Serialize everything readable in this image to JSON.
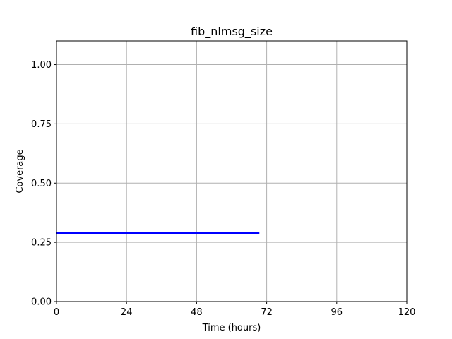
{
  "chart_data": {
    "type": "line",
    "title": "fib_nlmsg_size",
    "xlabel": "Time (hours)",
    "ylabel": "Coverage",
    "xlim": [
      0,
      120
    ],
    "ylim": [
      0,
      1.1
    ],
    "xticks": [
      0,
      24,
      48,
      72,
      96,
      120
    ],
    "xtick_labels": [
      "0",
      "24",
      "48",
      "72",
      "96",
      "120"
    ],
    "yticks": [
      0.0,
      0.25,
      0.5,
      0.75,
      1.0
    ],
    "ytick_labels": [
      "0.00",
      "0.25",
      "0.50",
      "0.75",
      "1.00"
    ],
    "grid": true,
    "legend": false,
    "series": [
      {
        "color": "#0000ff",
        "x": [
          0,
          69.5
        ],
        "y": [
          0.29,
          0.29
        ]
      }
    ]
  }
}
